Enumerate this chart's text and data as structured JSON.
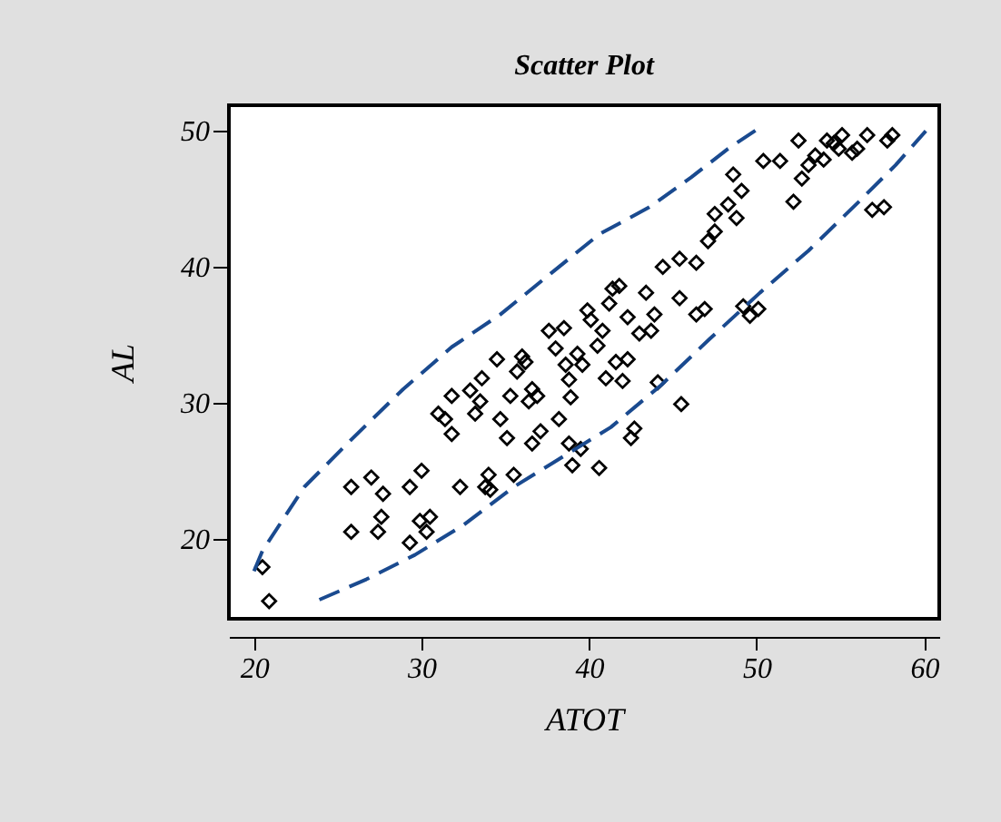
{
  "chart_data": {
    "type": "scatter",
    "title": "Scatter Plot",
    "xlabel": "ATOT",
    "ylabel": "AL",
    "xlim": [
      18.5,
      60.9
    ],
    "ylim": [
      14.1,
      51.9
    ],
    "xticks": [
      20,
      30,
      40,
      50,
      60
    ],
    "yticks": [
      20,
      30,
      40,
      50
    ],
    "grid": false,
    "series": [
      {
        "color": "#000000",
        "marker": "diamond",
        "x": [
          20.5,
          20.9,
          25.8,
          25.8,
          27.0,
          27.7,
          27.6,
          27.4,
          29.3,
          29.3,
          30.0,
          29.9,
          30.5,
          30.3,
          31.0,
          31.4,
          31.8,
          31.8,
          32.3,
          32.9,
          33.2,
          33.5,
          33.6,
          33.8,
          34.0,
          34.1,
          34.5,
          34.7,
          35.1,
          35.3,
          35.5,
          35.7,
          36.0,
          36.2,
          36.4,
          36.6,
          36.9,
          36.6,
          37.1,
          37.6,
          38.0,
          38.2,
          38.5,
          38.6,
          38.8,
          38.9,
          38.8,
          39.0,
          39.3,
          39.5,
          39.6,
          39.9,
          40.1,
          40.6,
          40.5,
          40.8,
          41.0,
          41.2,
          41.4,
          41.6,
          42.0,
          41.8,
          42.3,
          42.3,
          42.5,
          42.7,
          43.0,
          43.4,
          43.7,
          43.9,
          44.1,
          44.4,
          45.4,
          45.4,
          45.5,
          46.4,
          46.4,
          46.9,
          47.1,
          47.5,
          47.5,
          48.3,
          48.6,
          48.8,
          49.1,
          49.2,
          49.6,
          50.1,
          50.4,
          51.4,
          52.2,
          52.5,
          52.7,
          53.1,
          53.5,
          54.0,
          54.2,
          54.6,
          54.9,
          55.1,
          55.7,
          56.0,
          56.6,
          56.9,
          57.6,
          57.8,
          58.1
        ],
        "values": [
          17.9,
          15.4,
          23.8,
          20.5,
          24.5,
          23.3,
          21.6,
          20.5,
          23.8,
          19.7,
          25.0,
          21.3,
          21.6,
          20.5,
          29.2,
          28.8,
          30.5,
          27.7,
          23.8,
          30.9,
          29.2,
          30.1,
          31.8,
          23.8,
          24.7,
          23.6,
          33.2,
          28.8,
          27.4,
          30.5,
          24.7,
          32.3,
          33.4,
          33.0,
          30.1,
          31.0,
          30.5,
          27.0,
          27.9,
          35.3,
          34.0,
          28.8,
          35.5,
          32.8,
          31.7,
          30.4,
          27.0,
          25.4,
          33.6,
          26.6,
          32.8,
          36.8,
          36.1,
          25.2,
          34.2,
          35.3,
          31.8,
          37.3,
          38.4,
          33.0,
          31.6,
          38.6,
          36.3,
          33.2,
          27.4,
          28.1,
          35.1,
          38.1,
          35.3,
          36.5,
          31.5,
          40.0,
          40.6,
          37.7,
          29.9,
          40.3,
          36.5,
          36.9,
          41.9,
          43.9,
          42.6,
          44.6,
          46.8,
          43.6,
          45.6,
          37.1,
          36.4,
          36.9,
          47.8,
          47.8,
          44.8,
          49.3,
          46.5,
          47.5,
          48.2,
          47.9,
          49.3,
          49.1,
          48.7,
          49.7,
          48.4,
          48.7,
          49.7,
          44.2,
          44.4,
          49.3,
          49.7
        ]
      },
      {
        "type": "line",
        "color": "#1a4a8f",
        "line_style": "dashed",
        "x": [
          20.0,
          20.5,
          23.0,
          25.9,
          28.9,
          31.8,
          34.7,
          37.7,
          40.6,
          43.6,
          46.1,
          48.3,
          50.0
        ],
        "values": [
          17.6,
          19.1,
          23.8,
          27.4,
          31.0,
          34.1,
          36.5,
          39.5,
          42.4,
          44.4,
          46.6,
          48.7,
          50.1
        ]
      },
      {
        "type": "line",
        "color": "#1a4a8f",
        "line_style": "dashed",
        "x": [
          23.9,
          26.7,
          29.6,
          32.5,
          35.5,
          38.4,
          41.3,
          44.3,
          47.2,
          50.2,
          53.1,
          56.1,
          58.3,
          60.1
        ],
        "values": [
          15.5,
          17.0,
          18.8,
          21.0,
          23.8,
          26.0,
          28.2,
          31.3,
          34.7,
          38.1,
          41.2,
          44.8,
          47.5,
          50.0
        ]
      }
    ]
  }
}
